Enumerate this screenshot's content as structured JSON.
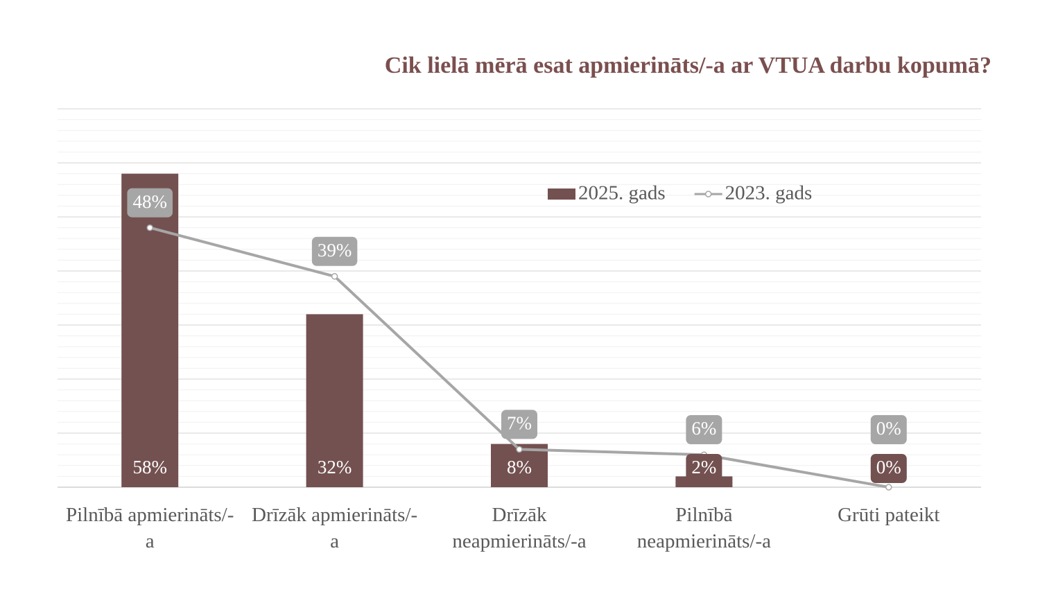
{
  "chart_data": {
    "type": "bar_line",
    "title": "Cik lielā mērā esat apmierināts/-a ar VTUA darbu kopumā?",
    "categories": [
      "Pilnībā apmierināts/-a",
      "Drīzāk apmierināts/-a",
      "Drīzāk neapmierināts/-a",
      "Pilnībā neapmierināts/-a",
      "Grūti pateikt"
    ],
    "series": [
      {
        "name": "2025. gads",
        "type": "bar",
        "color": "#735150",
        "values": [
          58,
          32,
          8,
          2,
          0
        ],
        "value_labels": [
          "58%",
          "32%",
          "8%",
          "2%",
          "0%"
        ]
      },
      {
        "name": "2023. gads",
        "type": "line",
        "color": "#a6a6a6",
        "values": [
          48,
          39,
          7,
          6,
          0
        ],
        "value_labels": [
          "48%",
          "39%",
          "7%",
          "6%",
          "0%"
        ]
      }
    ],
    "ylim": [
      0,
      70
    ],
    "yticks": [
      0,
      10,
      20,
      30,
      40,
      50,
      60,
      70
    ],
    "minor_yticks": [
      2,
      4,
      6,
      8,
      12,
      14,
      16,
      18,
      22,
      24,
      26,
      28,
      32,
      34,
      36,
      38,
      42,
      44,
      46,
      48,
      52,
      54,
      56,
      58,
      62,
      64,
      66,
      68
    ],
    "grid": true,
    "legend": "top-right"
  }
}
